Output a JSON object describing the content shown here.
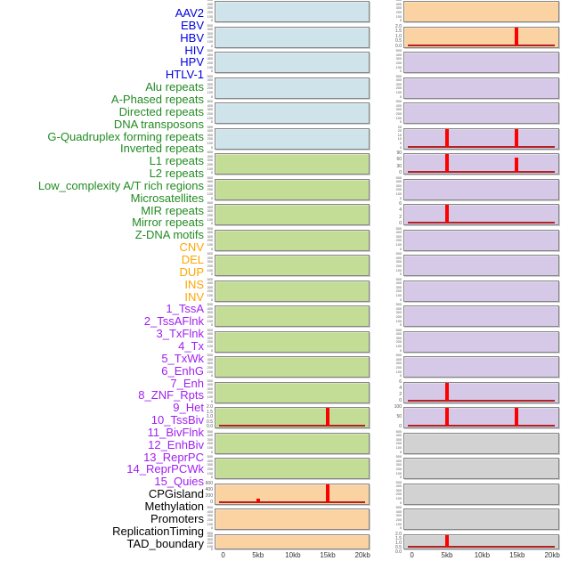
{
  "figure": {
    "background": "#ffffff",
    "colors": {
      "virus_label": "#0000DD",
      "repeat_label": "#228B22",
      "structural_variant_label": "#FFA500",
      "chromatin_state_label": "#A020F0",
      "other_label": "#000000",
      "panel_blue": "#CFE3EB",
      "panel_green": "#C3DC96",
      "panel_orange": "#FBD3A2",
      "panel_purple": "#D6C9E7",
      "panel_gray": "#D2D2D2",
      "spike": "#FF0000",
      "baseline": "#B22222",
      "axis_text": "#333333"
    }
  },
  "chart_data": {
    "type": "bar",
    "title": "",
    "xlabel": "",
    "x_range_kb": [
      0,
      20
    ],
    "x_ticks": [
      {
        "label": "0",
        "kb": 0
      },
      {
        "label": "5kb",
        "kb": 5
      },
      {
        "label": "10kb",
        "kb": 10
      },
      {
        "label": "15kb",
        "kb": 15
      },
      {
        "label": "20kb",
        "kb": 20
      }
    ],
    "layout": {
      "columns": 2,
      "rows": 22,
      "order": "column-major",
      "grid": false,
      "note": "44 tracks: labels listed top-to-bottom map to left panel column rows 1-22 then right panel column rows 1-22; y ticks listed top-to-bottom per track"
    },
    "tracks": [
      {
        "name": "AAV2",
        "group": "virus",
        "label_color": "#0000DD",
        "fill": "#CFE3EB",
        "yticks": [
          "500",
          "400",
          "300",
          "200",
          "100",
          "0"
        ],
        "spikes": []
      },
      {
        "name": "EBV",
        "group": "virus",
        "label_color": "#0000DD",
        "fill": "#CFE3EB",
        "yticks": [
          "500",
          "400",
          "300",
          "200",
          "100",
          "0"
        ],
        "spikes": []
      },
      {
        "name": "HBV",
        "group": "virus",
        "label_color": "#0000DD",
        "fill": "#CFE3EB",
        "yticks": [
          "500",
          "400",
          "300",
          "200",
          "100",
          "0"
        ],
        "spikes": []
      },
      {
        "name": "HIV",
        "group": "virus",
        "label_color": "#0000DD",
        "fill": "#CFE3EB",
        "yticks": [
          "500",
          "400",
          "300",
          "200",
          "100",
          "0"
        ],
        "spikes": []
      },
      {
        "name": "HPV",
        "group": "virus",
        "label_color": "#0000DD",
        "fill": "#CFE3EB",
        "yticks": [
          "500",
          "400",
          "300",
          "200",
          "100",
          "0"
        ],
        "spikes": []
      },
      {
        "name": "HTLV-1",
        "group": "virus",
        "label_color": "#0000DD",
        "fill": "#CFE3EB",
        "yticks": [
          "500",
          "400",
          "300",
          "200",
          "100",
          "0"
        ],
        "spikes": []
      },
      {
        "name": "Alu repeats",
        "group": "repeat",
        "label_color": "#228B22",
        "fill": "#C3DC96",
        "yticks": [
          "500",
          "400",
          "300",
          "200",
          "100",
          "0"
        ],
        "spikes": []
      },
      {
        "name": "A-Phased repeats",
        "group": "repeat",
        "label_color": "#228B22",
        "fill": "#C3DC96",
        "yticks": [
          "500",
          "400",
          "300",
          "200",
          "100",
          "0"
        ],
        "spikes": []
      },
      {
        "name": "Directed repeats",
        "group": "repeat",
        "label_color": "#228B22",
        "fill": "#C3DC96",
        "yticks": [
          "500",
          "400",
          "300",
          "200",
          "100",
          "0"
        ],
        "spikes": []
      },
      {
        "name": "DNA transposons",
        "group": "repeat",
        "label_color": "#228B22",
        "fill": "#C3DC96",
        "yticks": [
          "500",
          "400",
          "300",
          "200",
          "100",
          "0"
        ],
        "spikes": []
      },
      {
        "name": "G-Quadruplex forming repeats",
        "group": "repeat",
        "label_color": "#228B22",
        "fill": "#C3DC96",
        "yticks": [
          "500",
          "400",
          "300",
          "200",
          "100",
          "0"
        ],
        "spikes": []
      },
      {
        "name": "Inverted repeats",
        "group": "repeat",
        "label_color": "#228B22",
        "fill": "#C3DC96",
        "yticks": [
          "500",
          "400",
          "300",
          "200",
          "100",
          "0"
        ],
        "spikes": []
      },
      {
        "name": "L1 repeats",
        "group": "repeat",
        "label_color": "#228B22",
        "fill": "#C3DC96",
        "yticks": [
          "500",
          "400",
          "300",
          "200",
          "100",
          "0"
        ],
        "spikes": []
      },
      {
        "name": "L2 repeats",
        "group": "repeat",
        "label_color": "#228B22",
        "fill": "#C3DC96",
        "yticks": [
          "500",
          "400",
          "300",
          "200",
          "100",
          "0"
        ],
        "spikes": []
      },
      {
        "name": "Low_complexity A/T rich regions",
        "group": "repeat",
        "label_color": "#228B22",
        "fill": "#C3DC96",
        "yticks": [
          "500",
          "400",
          "300",
          "200",
          "100",
          "0"
        ],
        "spikes": []
      },
      {
        "name": "Microsatellites",
        "group": "repeat",
        "label_color": "#228B22",
        "fill": "#C3DC96",
        "yticks": [
          "500",
          "400",
          "300",
          "200",
          "100",
          "0"
        ],
        "spikes": []
      },
      {
        "name": "MIR repeats",
        "group": "repeat",
        "label_color": "#228B22",
        "fill": "#C3DC96",
        "yticks": [
          "2.0",
          "1.5",
          "1.0",
          "0.5",
          "0.0"
        ],
        "spikes": [
          {
            "x_kb": 15,
            "value": 2.0,
            "h_frac": 1.0
          }
        ]
      },
      {
        "name": "Mirror repeats",
        "group": "repeat",
        "label_color": "#228B22",
        "fill": "#C3DC96",
        "yticks": [
          "500",
          "400",
          "300",
          "200",
          "100",
          "0"
        ],
        "spikes": []
      },
      {
        "name": "Z-DNA motifs",
        "group": "repeat",
        "label_color": "#228B22",
        "fill": "#C3DC96",
        "yticks": [
          "500",
          "400",
          "300",
          "200",
          "100",
          "0"
        ],
        "spikes": []
      },
      {
        "name": "CNV",
        "group": "structural_variant",
        "label_color": "#FFA500",
        "fill": "#FBD3A2",
        "yticks": [
          "600",
          "400",
          "200",
          "0"
        ],
        "spikes": [
          {
            "x_kb": 5,
            "value": 130,
            "h_frac": 0.2
          },
          {
            "x_kb": 15,
            "value": 680,
            "h_frac": 1.0
          }
        ]
      },
      {
        "name": "DEL",
        "group": "structural_variant",
        "label_color": "#FFA500",
        "fill": "#FBD3A2",
        "yticks": [
          "500",
          "400",
          "300",
          "200",
          "100",
          "0"
        ],
        "spikes": []
      },
      {
        "name": "DUP",
        "group": "structural_variant",
        "label_color": "#FFA500",
        "fill": "#FBD3A2",
        "yticks": [
          "500",
          "400",
          "300",
          "200",
          "100",
          "0"
        ],
        "spikes": []
      },
      {
        "name": "INS",
        "group": "structural_variant",
        "label_color": "#FFA500",
        "fill": "#FBD3A2",
        "yticks": [
          "500",
          "400",
          "300",
          "200",
          "100",
          "0"
        ],
        "spikes": []
      },
      {
        "name": "INV",
        "group": "structural_variant",
        "label_color": "#FFA500",
        "fill": "#FBD3A2",
        "yticks": [
          "2.0",
          "1.5",
          "1.0",
          "0.5",
          "0.0"
        ],
        "spikes": [
          {
            "x_kb": 15,
            "value": 2.0,
            "h_frac": 1.0
          }
        ]
      },
      {
        "name": "1_TssA",
        "group": "chromatin_state",
        "label_color": "#A020F0",
        "fill": "#D6C9E7",
        "yticks": [
          "500",
          "400",
          "300",
          "200",
          "100",
          "0"
        ],
        "spikes": []
      },
      {
        "name": "2_TssAFlnk",
        "group": "chromatin_state",
        "label_color": "#A020F0",
        "fill": "#D6C9E7",
        "yticks": [
          "500",
          "400",
          "300",
          "200",
          "100",
          "0"
        ],
        "spikes": []
      },
      {
        "name": "3_TxFlnk",
        "group": "chromatin_state",
        "label_color": "#A020F0",
        "fill": "#D6C9E7",
        "yticks": [
          "500",
          "400",
          "300",
          "200",
          "100",
          "0"
        ],
        "spikes": []
      },
      {
        "name": "4_Tx",
        "group": "chromatin_state",
        "label_color": "#A020F0",
        "fill": "#D6C9E7",
        "yticks": [
          "25",
          "20",
          "15",
          "10",
          "5",
          "0"
        ],
        "spikes": [
          {
            "x_kb": 5,
            "value": 25,
            "h_frac": 1.0
          },
          {
            "x_kb": 15,
            "value": 25,
            "h_frac": 1.0
          }
        ]
      },
      {
        "name": "5_TxWk",
        "group": "chromatin_state",
        "label_color": "#A020F0",
        "fill": "#D6C9E7",
        "yticks": [
          "90",
          "60",
          "30",
          "0"
        ],
        "spikes": [
          {
            "x_kb": 5,
            "value": 90,
            "h_frac": 1.0
          },
          {
            "x_kb": 15,
            "value": 70,
            "h_frac": 0.78
          }
        ]
      },
      {
        "name": "6_EnhG",
        "group": "chromatin_state",
        "label_color": "#A020F0",
        "fill": "#D6C9E7",
        "yticks": [
          "500",
          "400",
          "300",
          "200",
          "100",
          "0"
        ],
        "spikes": []
      },
      {
        "name": "7_Enh",
        "group": "chromatin_state",
        "label_color": "#A020F0",
        "fill": "#D6C9E7",
        "yticks": [
          "6",
          "4",
          "2",
          "0"
        ],
        "spikes": [
          {
            "x_kb": 5,
            "value": 6,
            "h_frac": 1.0
          }
        ]
      },
      {
        "name": "8_ZNF_Rpts",
        "group": "chromatin_state",
        "label_color": "#A020F0",
        "fill": "#D6C9E7",
        "yticks": [
          "500",
          "400",
          "300",
          "200",
          "100",
          "0"
        ],
        "spikes": []
      },
      {
        "name": "9_Het",
        "group": "chromatin_state",
        "label_color": "#A020F0",
        "fill": "#D6C9E7",
        "yticks": [
          "500",
          "400",
          "300",
          "200",
          "100",
          "0"
        ],
        "spikes": []
      },
      {
        "name": "10_TssBiv",
        "group": "chromatin_state",
        "label_color": "#A020F0",
        "fill": "#D6C9E7",
        "yticks": [
          "500",
          "400",
          "300",
          "200",
          "100",
          "0"
        ],
        "spikes": []
      },
      {
        "name": "11_BivFlnk",
        "group": "chromatin_state",
        "label_color": "#A020F0",
        "fill": "#D6C9E7",
        "yticks": [
          "500",
          "400",
          "300",
          "200",
          "100",
          "0"
        ],
        "spikes": []
      },
      {
        "name": "12_EnhBiv",
        "group": "chromatin_state",
        "label_color": "#A020F0",
        "fill": "#D6C9E7",
        "yticks": [
          "500",
          "400",
          "300",
          "200",
          "100",
          "0"
        ],
        "spikes": []
      },
      {
        "name": "13_ReprPC",
        "group": "chromatin_state",
        "label_color": "#A020F0",
        "fill": "#D6C9E7",
        "yticks": [
          "500",
          "400",
          "300",
          "200",
          "100",
          "0"
        ],
        "spikes": []
      },
      {
        "name": "14_ReprPCWk",
        "group": "chromatin_state",
        "label_color": "#A020F0",
        "fill": "#D6C9E7",
        "yticks": [
          "6",
          "4",
          "2",
          "0"
        ],
        "spikes": [
          {
            "x_kb": 5,
            "value": 6,
            "h_frac": 1.0
          }
        ]
      },
      {
        "name": "15_Quies",
        "group": "chromatin_state",
        "label_color": "#A020F0",
        "fill": "#D6C9E7",
        "yticks": [
          "100",
          "50",
          "0"
        ],
        "spikes": [
          {
            "x_kb": 5,
            "value": 100,
            "h_frac": 1.0
          },
          {
            "x_kb": 15,
            "value": 100,
            "h_frac": 1.0
          }
        ]
      },
      {
        "name": "CPGisland",
        "group": "other",
        "label_color": "#000000",
        "fill": "#D2D2D2",
        "yticks": [
          "500",
          "400",
          "300",
          "200",
          "100",
          "0"
        ],
        "spikes": []
      },
      {
        "name": "Methylation",
        "group": "other",
        "label_color": "#000000",
        "fill": "#D2D2D2",
        "yticks": [
          "500",
          "400",
          "300",
          "200",
          "100",
          "0"
        ],
        "spikes": []
      },
      {
        "name": "Promoters",
        "group": "other",
        "label_color": "#000000",
        "fill": "#D2D2D2",
        "yticks": [
          "500",
          "400",
          "300",
          "200",
          "100",
          "0"
        ],
        "spikes": []
      },
      {
        "name": "ReplicationTiming",
        "group": "other",
        "label_color": "#000000",
        "fill": "#D2D2D2",
        "yticks": [
          "500",
          "400",
          "300",
          "200",
          "100",
          "0"
        ],
        "spikes": []
      },
      {
        "name": "TAD_boundary",
        "group": "other",
        "label_color": "#000000",
        "fill": "#D2D2D2",
        "yticks": [
          "2.0",
          "1.5",
          "1.0",
          "0.5",
          "0.0"
        ],
        "spikes": [
          {
            "x_kb": 5,
            "value": 2.0,
            "h_frac": 1.0
          }
        ]
      }
    ]
  }
}
